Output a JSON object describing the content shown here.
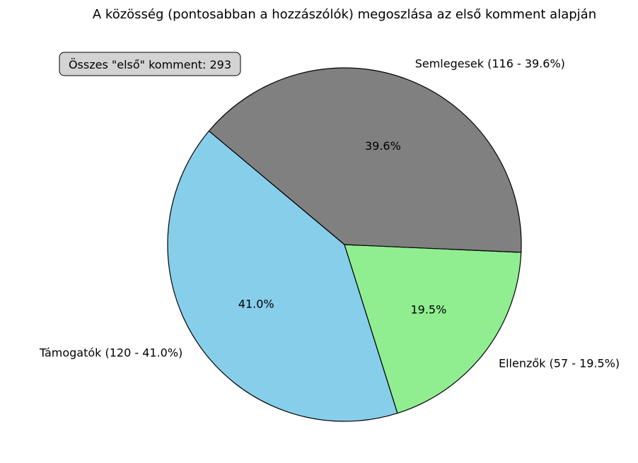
{
  "chart_data": {
    "type": "pie",
    "title": "A közösség (pontosabban a hozzászólók) megoszlása az első komment alapján",
    "annotation": "Összes \"első\" komment: 293",
    "total": 293,
    "start_angle_deg": 140,
    "direction": "counterclockwise",
    "edge_color": "#000000",
    "slices": [
      {
        "label": "Támogatók (120 - 41.0%)",
        "value": 120,
        "percent_label": "41.0%",
        "color": "#87ceeb"
      },
      {
        "label": "Ellenzők (57 - 19.5%)",
        "value": 57,
        "percent_label": "19.5%",
        "color": "#90ee90"
      },
      {
        "label": "Semlegesek (116 - 39.6%)",
        "value": 116,
        "percent_label": "39.6%",
        "color": "#808080"
      }
    ]
  }
}
